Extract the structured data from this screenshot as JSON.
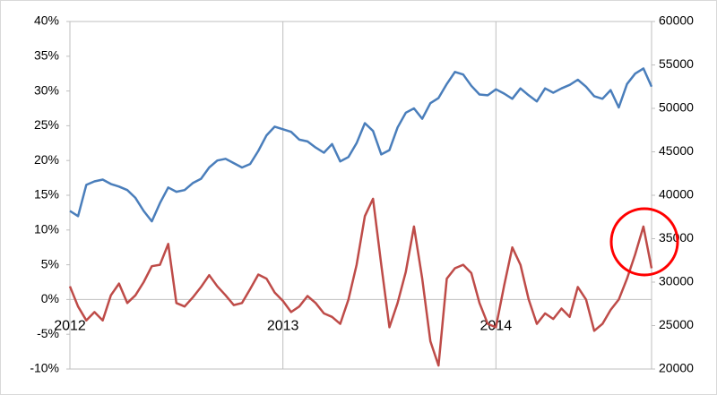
{
  "chart_data": {
    "type": "line",
    "categories": [
      "2012",
      null,
      null,
      null,
      null,
      null,
      null,
      null,
      null,
      null,
      null,
      null,
      null,
      null,
      null,
      null,
      null,
      null,
      null,
      null,
      null,
      null,
      null,
      null,
      null,
      null,
      "2013",
      null,
      null,
      null,
      null,
      null,
      null,
      null,
      null,
      null,
      null,
      null,
      null,
      null,
      null,
      null,
      null,
      null,
      null,
      null,
      null,
      null,
      null,
      null,
      null,
      null,
      "2014",
      null,
      null,
      null,
      null,
      null,
      null,
      null,
      null,
      null,
      null,
      null,
      null,
      null,
      null,
      null,
      null,
      null,
      null,
      null
    ],
    "series": [
      {
        "color": "#4a7ebb",
        "axis": "y2",
        "values": [
          38200,
          37600,
          41200,
          41600,
          41800,
          41300,
          41000,
          40600,
          39700,
          38200,
          37000,
          39100,
          40900,
          40400,
          40600,
          41400,
          41900,
          43200,
          44000,
          44200,
          43700,
          43200,
          43600,
          45100,
          46900,
          47900,
          47600,
          47300,
          46400,
          46200,
          45500,
          44900,
          45900,
          43900,
          44400,
          46000,
          48300,
          47400,
          44700,
          45200,
          47800,
          49500,
          50000,
          48800,
          50600,
          51200,
          52800,
          54200,
          53900,
          52600,
          51600,
          51500,
          52200,
          51700,
          51100,
          52300,
          51500,
          50800,
          52300,
          51800,
          52300,
          52700,
          53300,
          52500,
          51400,
          51100,
          52100,
          50100,
          52800,
          54000,
          54600,
          52500
        ]
      },
      {
        "color": "#be4b48",
        "values": [
          1.9,
          -1.0,
          -3.0,
          -1.8,
          -3.0,
          0.6,
          2.3,
          -0.5,
          0.6,
          2.5,
          4.8,
          5.0,
          8.0,
          -0.5,
          -1.0,
          0.3,
          1.8,
          3.5,
          1.9,
          0.6,
          -0.8,
          -0.5,
          1.5,
          3.6,
          3.0,
          1.0,
          -0.2,
          -1.8,
          -1.0,
          0.5,
          -0.5,
          -2.0,
          -2.5,
          -3.5,
          0.0,
          5.0,
          12.0,
          14.5,
          5.0,
          -4.0,
          -0.5,
          4.0,
          10.5,
          3.0,
          -6.0,
          -9.5,
          3.0,
          4.5,
          5.0,
          3.8,
          -0.5,
          -3.5,
          -4.0,
          2.0,
          7.5,
          5.0,
          0.0,
          -3.5,
          -2.0,
          -2.8,
          -1.3,
          -2.5,
          1.8,
          0.0,
          -4.5,
          -3.5,
          -1.5,
          0.0,
          3.0,
          6.5,
          10.5,
          4.5
        ]
      }
    ],
    "ylim": [
      -10,
      40
    ],
    "yticks": [
      {
        "value": -10,
        "label": "-10%"
      },
      {
        "value": -5,
        "label": "-5%"
      },
      {
        "value": 0,
        "label": "0%"
      },
      {
        "value": 5,
        "label": "5%"
      },
      {
        "value": 10,
        "label": "10%"
      },
      {
        "value": 15,
        "label": "15%"
      },
      {
        "value": 20,
        "label": "20%"
      },
      {
        "value": 25,
        "label": "25%"
      },
      {
        "value": 30,
        "label": "30%"
      },
      {
        "value": 35,
        "label": "35%"
      },
      {
        "value": 40,
        "label": "40%"
      }
    ],
    "y2lim": [
      20000,
      60000
    ],
    "y2ticks": [
      20000,
      25000,
      30000,
      35000,
      40000,
      45000,
      50000,
      55000,
      60000
    ]
  }
}
